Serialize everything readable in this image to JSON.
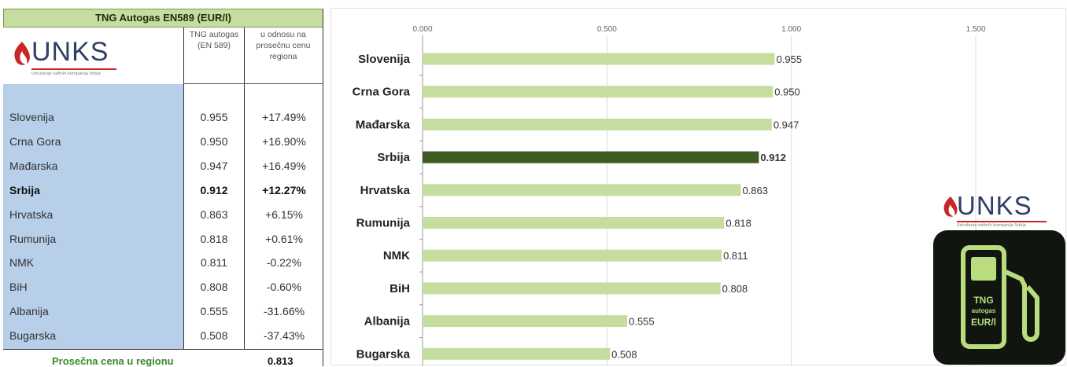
{
  "table": {
    "title": "TNG Autogas EN589 (EUR/l)",
    "col_price": "TNG autogas (EN 589)",
    "col_diff": "u odnosu na prosečnu cenu regiona",
    "rows": [
      {
        "country": "Slovenija",
        "price": "0.955",
        "diff": "+17.49%"
      },
      {
        "country": "Crna Gora",
        "price": "0.950",
        "diff": "+16.90%"
      },
      {
        "country": "Mađarska",
        "price": "0.947",
        "diff": "+16.49%"
      },
      {
        "country": "Srbija",
        "price": "0.912",
        "diff": "+12.27%"
      },
      {
        "country": "Hrvatska",
        "price": "0.863",
        "diff": "+6.15%"
      },
      {
        "country": "Rumunija",
        "price": "0.818",
        "diff": "+0.61%"
      },
      {
        "country": "NMK",
        "price": "0.811",
        "diff": "-0.22%"
      },
      {
        "country": "BiH",
        "price": "0.808",
        "diff": "-0.60%"
      },
      {
        "country": "Albanija",
        "price": "0.555",
        "diff": "-31.66%"
      },
      {
        "country": "Bugarska",
        "price": "0.508",
        "diff": "-37.43%"
      }
    ],
    "avg_label": "Prosečna cena u regionu",
    "avg_value": "0.813"
  },
  "logo": {
    "text": "UNKS",
    "tagline": "Udruženje naftnih kompanija Srbije"
  },
  "badge": {
    "line1": "TNG",
    "line2": "autogas",
    "line3": "EUR/l"
  },
  "colors": {
    "bar": "#c5dea0",
    "bar_highlight": "#3e5b23",
    "table_blue": "#b7cfe9",
    "title_green": "#c5dea0",
    "logo_blue": "#2f3e66",
    "logo_red": "#c62828",
    "badge_green": "#b8dc7e"
  },
  "chart_data": {
    "type": "bar",
    "orientation": "horizontal",
    "categories": [
      "Slovenija",
      "Crna Gora",
      "Mađarska",
      "Srbija",
      "Hrvatska",
      "Rumunija",
      "NMK",
      "BiH",
      "Albanija",
      "Bugarska"
    ],
    "values": [
      0.955,
      0.95,
      0.947,
      0.912,
      0.863,
      0.818,
      0.811,
      0.808,
      0.555,
      0.508
    ],
    "value_labels": [
      "0.955",
      "0.950",
      "0.947",
      "0.912",
      "0.863",
      "0.818",
      "0.811",
      "0.808",
      "0.555",
      "0.508"
    ],
    "highlight": "Srbija",
    "xlim": [
      0,
      1.5
    ],
    "xticks": [
      0,
      0.5,
      1.0,
      1.5
    ],
    "xtick_labels": [
      "0.000",
      "0.500",
      "1.000",
      "1.500"
    ],
    "axis_position": "top",
    "grid": true,
    "legend": false
  }
}
